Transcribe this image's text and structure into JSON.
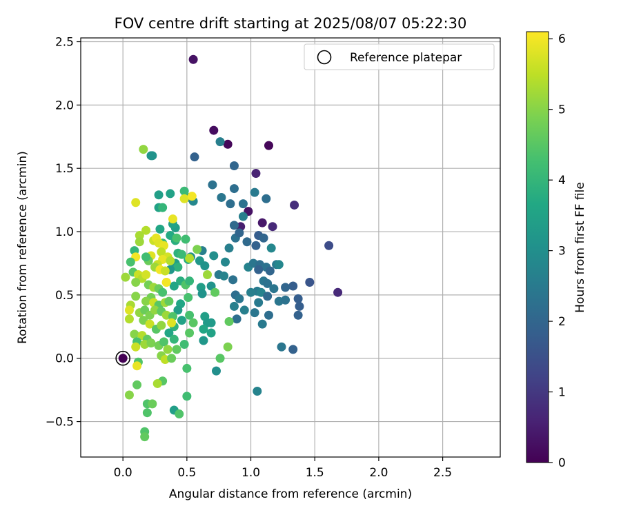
{
  "chart_data": {
    "type": "scatter",
    "title": "FOV centre drift starting at 2025/08/07 05:22:30",
    "xlabel": "Angular distance from reference (arcmin)",
    "ylabel": "Rotation from reference (arcmin)",
    "xlim": [
      -0.33,
      2.95
    ],
    "ylim": [
      -0.78,
      2.53
    ],
    "xticks": [
      "0.0",
      "0.5",
      "1.0",
      "1.5",
      "2.0",
      "2.5"
    ],
    "yticks": [
      "−0.5",
      "0.0",
      "0.5",
      "1.0",
      "1.5",
      "2.0",
      "2.5"
    ],
    "grid": true,
    "legend": {
      "label": "Reference platepar",
      "placement": "top-right"
    },
    "colorbar": {
      "label": "Hours from first FF file",
      "colormap": "viridis",
      "range": [
        0,
        6.1
      ],
      "ticks": [
        "0",
        "1",
        "2",
        "3",
        "4",
        "5",
        "6"
      ]
    },
    "reference_point": {
      "x": 0.0,
      "y": 0.0,
      "hours": 0.0
    },
    "points": [
      {
        "x": 0.55,
        "y": 2.36,
        "h": 0.3
      },
      {
        "x": 0.71,
        "y": 1.8,
        "h": 0.2
      },
      {
        "x": 0.82,
        "y": 1.69,
        "h": 0.1
      },
      {
        "x": 1.14,
        "y": 1.68,
        "h": 0.1
      },
      {
        "x": 1.04,
        "y": 1.46,
        "h": 0.6
      },
      {
        "x": 1.34,
        "y": 1.21,
        "h": 0.8
      },
      {
        "x": 0.98,
        "y": 1.16,
        "h": 0.3
      },
      {
        "x": 1.09,
        "y": 1.07,
        "h": 0.4
      },
      {
        "x": 1.17,
        "y": 1.04,
        "h": 0.7
      },
      {
        "x": 0.92,
        "y": 1.04,
        "h": 0.5
      },
      {
        "x": 1.68,
        "y": 0.52,
        "h": 0.7
      },
      {
        "x": 1.61,
        "y": 0.89,
        "h": 1.4
      },
      {
        "x": 1.46,
        "y": 0.6,
        "h": 1.6
      },
      {
        "x": 1.37,
        "y": 0.47,
        "h": 1.8
      },
      {
        "x": 1.33,
        "y": 0.07,
        "h": 1.9
      },
      {
        "x": 1.38,
        "y": 0.41,
        "h": 1.8
      },
      {
        "x": 1.37,
        "y": 0.34,
        "h": 1.9
      },
      {
        "x": 1.33,
        "y": 0.57,
        "h": 1.8
      },
      {
        "x": 1.27,
        "y": 0.56,
        "h": 2.0
      },
      {
        "x": 1.24,
        "y": 0.09,
        "h": 2.4
      },
      {
        "x": 0.56,
        "y": 1.59,
        "h": 1.9
      },
      {
        "x": 0.87,
        "y": 1.52,
        "h": 2.0
      },
      {
        "x": 0.76,
        "y": 1.71,
        "h": 2.6
      },
      {
        "x": 0.7,
        "y": 1.37,
        "h": 2.3
      },
      {
        "x": 0.87,
        "y": 1.34,
        "h": 2.2
      },
      {
        "x": 0.77,
        "y": 1.27,
        "h": 2.4
      },
      {
        "x": 0.84,
        "y": 1.22,
        "h": 2.2
      },
      {
        "x": 0.94,
        "y": 1.22,
        "h": 2.3
      },
      {
        "x": 1.03,
        "y": 1.31,
        "h": 2.5
      },
      {
        "x": 1.12,
        "y": 1.26,
        "h": 2.2
      },
      {
        "x": 0.94,
        "y": 1.12,
        "h": 2.6
      },
      {
        "x": 0.87,
        "y": 1.05,
        "h": 2.1
      },
      {
        "x": 0.83,
        "y": 0.87,
        "h": 2.6
      },
      {
        "x": 0.88,
        "y": 0.95,
        "h": 2.3
      },
      {
        "x": 0.91,
        "y": 0.99,
        "h": 2.0
      },
      {
        "x": 0.97,
        "y": 0.92,
        "h": 2.1
      },
      {
        "x": 1.04,
        "y": 0.89,
        "h": 1.9
      },
      {
        "x": 1.06,
        "y": 0.97,
        "h": 1.8
      },
      {
        "x": 1.1,
        "y": 0.95,
        "h": 2.0
      },
      {
        "x": 1.16,
        "y": 0.87,
        "h": 2.8
      },
      {
        "x": 0.98,
        "y": 0.72,
        "h": 2.7
      },
      {
        "x": 1.02,
        "y": 0.75,
        "h": 2.4
      },
      {
        "x": 1.07,
        "y": 0.74,
        "h": 2.2
      },
      {
        "x": 1.12,
        "y": 0.72,
        "h": 2.3
      },
      {
        "x": 1.15,
        "y": 0.69,
        "h": 2.0
      },
      {
        "x": 1.06,
        "y": 0.7,
        "h": 1.9
      },
      {
        "x": 1.2,
        "y": 0.74,
        "h": 2.5
      },
      {
        "x": 1.22,
        "y": 0.74,
        "h": 2.8
      },
      {
        "x": 1.1,
        "y": 0.61,
        "h": 2.4
      },
      {
        "x": 1.13,
        "y": 0.59,
        "h": 2.3
      },
      {
        "x": 1.18,
        "y": 0.55,
        "h": 2.4
      },
      {
        "x": 1.05,
        "y": 0.53,
        "h": 2.5
      },
      {
        "x": 1.0,
        "y": 0.52,
        "h": 2.6
      },
      {
        "x": 1.08,
        "y": 0.52,
        "h": 2.7
      },
      {
        "x": 1.13,
        "y": 0.49,
        "h": 2.1
      },
      {
        "x": 1.22,
        "y": 0.45,
        "h": 2.4
      },
      {
        "x": 1.27,
        "y": 0.46,
        "h": 2.3
      },
      {
        "x": 1.06,
        "y": 0.44,
        "h": 2.5
      },
      {
        "x": 0.95,
        "y": 0.38,
        "h": 2.6
      },
      {
        "x": 1.03,
        "y": 0.36,
        "h": 2.4
      },
      {
        "x": 1.14,
        "y": 0.34,
        "h": 2.2
      },
      {
        "x": 1.09,
        "y": 0.27,
        "h": 2.5
      },
      {
        "x": 0.89,
        "y": 0.31,
        "h": 2.2
      },
      {
        "x": 0.88,
        "y": 0.5,
        "h": 2.2
      },
      {
        "x": 0.91,
        "y": 0.47,
        "h": 2.4
      },
      {
        "x": 0.87,
        "y": 0.41,
        "h": 2.6
      },
      {
        "x": 0.75,
        "y": 0.66,
        "h": 2.5
      },
      {
        "x": 0.79,
        "y": 0.65,
        "h": 2.7
      },
      {
        "x": 0.86,
        "y": 0.62,
        "h": 2.3
      },
      {
        "x": 0.8,
        "y": 0.76,
        "h": 2.8
      },
      {
        "x": 0.71,
        "y": 0.81,
        "h": 3.0
      },
      {
        "x": 0.62,
        "y": 0.85,
        "h": 2.6
      },
      {
        "x": 0.6,
        "y": 0.77,
        "h": 3.2
      },
      {
        "x": 0.53,
        "y": 0.8,
        "h": 3.0
      },
      {
        "x": 0.64,
        "y": 0.73,
        "h": 3.1
      },
      {
        "x": 0.69,
        "y": 0.57,
        "h": 3.1
      },
      {
        "x": 0.61,
        "y": 0.56,
        "h": 3.4
      },
      {
        "x": 0.62,
        "y": 0.51,
        "h": 3.1
      },
      {
        "x": 1.05,
        "y": -0.26,
        "h": 2.7
      },
      {
        "x": 0.73,
        "y": -0.1,
        "h": 3.0
      },
      {
        "x": 0.69,
        "y": 0.28,
        "h": 3.3
      },
      {
        "x": 0.64,
        "y": 0.33,
        "h": 3.4
      },
      {
        "x": 0.66,
        "y": 0.28,
        "h": 3.3
      },
      {
        "x": 0.63,
        "y": 0.23,
        "h": 3.6
      },
      {
        "x": 0.63,
        "y": 0.14,
        "h": 3.2
      },
      {
        "x": 0.69,
        "y": 0.2,
        "h": 3.5
      },
      {
        "x": 0.52,
        "y": 1.27,
        "h": 2.6
      },
      {
        "x": 0.55,
        "y": 1.24,
        "h": 2.8
      },
      {
        "x": 0.22,
        "y": 1.6,
        "h": 3.2
      },
      {
        "x": 0.28,
        "y": 1.29,
        "h": 3.4
      },
      {
        "x": 0.37,
        "y": 1.3,
        "h": 3.5
      },
      {
        "x": 0.28,
        "y": 1.19,
        "h": 3.5
      },
      {
        "x": 0.31,
        "y": 1.19,
        "h": 4.0
      },
      {
        "x": 0.41,
        "y": 1.03,
        "h": 3.4
      },
      {
        "x": 0.39,
        "y": 1.06,
        "h": 3.5
      },
      {
        "x": 0.29,
        "y": 1.02,
        "h": 3.6
      },
      {
        "x": 0.48,
        "y": 1.32,
        "h": 4.1
      },
      {
        "x": 0.37,
        "y": 0.97,
        "h": 3.7
      },
      {
        "x": 0.41,
        "y": 0.93,
        "h": 3.8
      },
      {
        "x": 0.31,
        "y": 0.91,
        "h": 4.1
      },
      {
        "x": 0.43,
        "y": 0.83,
        "h": 3.9
      },
      {
        "x": 0.49,
        "y": 0.94,
        "h": 4.2
      },
      {
        "x": 0.51,
        "y": 0.78,
        "h": 3.8
      },
      {
        "x": 0.41,
        "y": 0.75,
        "h": 3.4
      },
      {
        "x": 0.43,
        "y": 0.72,
        "h": 3.9
      },
      {
        "x": 0.37,
        "y": 0.7,
        "h": 3.2
      },
      {
        "x": 0.45,
        "y": 0.61,
        "h": 3.8
      },
      {
        "x": 0.4,
        "y": 0.57,
        "h": 3.6
      },
      {
        "x": 0.49,
        "y": 0.58,
        "h": 4.4
      },
      {
        "x": 0.52,
        "y": 0.61,
        "h": 4.0
      },
      {
        "x": 0.51,
        "y": 0.48,
        "h": 4.3
      },
      {
        "x": 0.45,
        "y": 0.43,
        "h": 3.6
      },
      {
        "x": 0.43,
        "y": 0.38,
        "h": 3.4
      },
      {
        "x": 0.46,
        "y": 0.3,
        "h": 3.5
      },
      {
        "x": 0.4,
        "y": 0.25,
        "h": 3.9
      },
      {
        "x": 0.36,
        "y": 0.2,
        "h": 3.6
      },
      {
        "x": 0.4,
        "y": 0.15,
        "h": 4.0
      },
      {
        "x": 0.48,
        "y": 0.11,
        "h": 4.2
      },
      {
        "x": 0.52,
        "y": 0.34,
        "h": 4.3
      },
      {
        "x": 0.55,
        "y": 0.28,
        "h": 4.5
      },
      {
        "x": 0.52,
        "y": 0.2,
        "h": 4.5
      },
      {
        "x": 0.76,
        "y": 0.0,
        "h": 4.5
      },
      {
        "x": 0.82,
        "y": 0.09,
        "h": 4.9
      },
      {
        "x": 0.72,
        "y": 0.52,
        "h": 4.6
      },
      {
        "x": 0.83,
        "y": 0.29,
        "h": 4.6
      },
      {
        "x": 0.66,
        "y": 0.66,
        "h": 5.2
      },
      {
        "x": 0.58,
        "y": 0.86,
        "h": 4.9
      },
      {
        "x": 0.52,
        "y": 0.79,
        "h": 5.4
      },
      {
        "x": 0.23,
        "y": 1.6,
        "h": 3.1
      },
      {
        "x": 0.46,
        "y": 0.82,
        "h": 4.1
      },
      {
        "x": 0.42,
        "y": 0.95,
        "h": 4.3
      },
      {
        "x": 0.48,
        "y": 1.26,
        "h": 5.8
      },
      {
        "x": 0.54,
        "y": 1.28,
        "h": 6.0
      },
      {
        "x": 0.16,
        "y": 1.65,
        "h": 5.1
      },
      {
        "x": 0.1,
        "y": 1.23,
        "h": 5.8
      },
      {
        "x": 0.39,
        "y": 1.1,
        "h": 5.9
      },
      {
        "x": 0.18,
        "y": 1.01,
        "h": 5.4
      },
      {
        "x": 0.13,
        "y": 0.97,
        "h": 5.3
      },
      {
        "x": 0.13,
        "y": 0.92,
        "h": 5.2
      },
      {
        "x": 0.24,
        "y": 0.93,
        "h": 5.6
      },
      {
        "x": 0.26,
        "y": 0.95,
        "h": 5.9
      },
      {
        "x": 0.28,
        "y": 0.91,
        "h": 5.8
      },
      {
        "x": 0.32,
        "y": 0.89,
        "h": 5.9
      },
      {
        "x": 0.3,
        "y": 0.84,
        "h": 5.5
      },
      {
        "x": 0.35,
        "y": 0.8,
        "h": 5.7
      },
      {
        "x": 0.31,
        "y": 0.78,
        "h": 5.9
      },
      {
        "x": 0.37,
        "y": 0.77,
        "h": 5.4
      },
      {
        "x": 0.27,
        "y": 0.74,
        "h": 5.6
      },
      {
        "x": 0.25,
        "y": 0.72,
        "h": 5.2
      },
      {
        "x": 0.29,
        "y": 0.7,
        "h": 6.0
      },
      {
        "x": 0.33,
        "y": 0.69,
        "h": 5.6
      },
      {
        "x": 0.22,
        "y": 0.81,
        "h": 5.8
      },
      {
        "x": 0.2,
        "y": 0.77,
        "h": 4.7
      },
      {
        "x": 0.18,
        "y": 0.8,
        "h": 4.2
      },
      {
        "x": 0.09,
        "y": 0.85,
        "h": 4.0
      },
      {
        "x": 0.1,
        "y": 0.8,
        "h": 6.0
      },
      {
        "x": 0.06,
        "y": 0.76,
        "h": 4.3
      },
      {
        "x": 0.08,
        "y": 0.68,
        "h": 4.5
      },
      {
        "x": 0.12,
        "y": 0.66,
        "h": 5.6
      },
      {
        "x": 0.15,
        "y": 0.63,
        "h": 5.4
      },
      {
        "x": 0.18,
        "y": 0.66,
        "h": 5.7
      },
      {
        "x": 0.1,
        "y": 0.6,
        "h": 5.0
      },
      {
        "x": 0.02,
        "y": 0.64,
        "h": 5.2
      },
      {
        "x": 0.2,
        "y": 0.58,
        "h": 4.8
      },
      {
        "x": 0.24,
        "y": 0.56,
        "h": 5.2
      },
      {
        "x": 0.28,
        "y": 0.55,
        "h": 4.7
      },
      {
        "x": 0.34,
        "y": 0.6,
        "h": 5.9
      },
      {
        "x": 0.31,
        "y": 0.52,
        "h": 4.3
      },
      {
        "x": 0.22,
        "y": 0.48,
        "h": 4.8
      },
      {
        "x": 0.18,
        "y": 0.45,
        "h": 5.0
      },
      {
        "x": 0.24,
        "y": 0.44,
        "h": 5.6
      },
      {
        "x": 0.28,
        "y": 0.42,
        "h": 4.5
      },
      {
        "x": 0.33,
        "y": 0.44,
        "h": 5.2
      },
      {
        "x": 0.36,
        "y": 0.45,
        "h": 4.6
      },
      {
        "x": 0.1,
        "y": 0.49,
        "h": 5.0
      },
      {
        "x": 0.06,
        "y": 0.42,
        "h": 5.3
      },
      {
        "x": 0.05,
        "y": 0.38,
        "h": 5.8
      },
      {
        "x": 0.13,
        "y": 0.36,
        "h": 5.1
      },
      {
        "x": 0.17,
        "y": 0.38,
        "h": 4.7
      },
      {
        "x": 0.21,
        "y": 0.34,
        "h": 4.9
      },
      {
        "x": 0.25,
        "y": 0.38,
        "h": 5.1
      },
      {
        "x": 0.3,
        "y": 0.37,
        "h": 4.6
      },
      {
        "x": 0.34,
        "y": 0.34,
        "h": 5.2
      },
      {
        "x": 0.39,
        "y": 0.33,
        "h": 4.4
      },
      {
        "x": 0.05,
        "y": 0.31,
        "h": 5.4
      },
      {
        "x": 0.16,
        "y": 0.3,
        "h": 4.9
      },
      {
        "x": 0.21,
        "y": 0.27,
        "h": 5.6
      },
      {
        "x": 0.26,
        "y": 0.23,
        "h": 4.5
      },
      {
        "x": 0.3,
        "y": 0.26,
        "h": 5.1
      },
      {
        "x": 0.38,
        "y": 0.28,
        "h": 5.8
      },
      {
        "x": 0.09,
        "y": 0.19,
        "h": 5.0
      },
      {
        "x": 0.15,
        "y": 0.18,
        "h": 5.4
      },
      {
        "x": 0.19,
        "y": 0.15,
        "h": 4.6
      },
      {
        "x": 0.11,
        "y": 0.13,
        "h": 4.3
      },
      {
        "x": 0.17,
        "y": 0.11,
        "h": 5.2
      },
      {
        "x": 0.1,
        "y": 0.09,
        "h": 5.6
      },
      {
        "x": 0.22,
        "y": 0.12,
        "h": 4.9
      },
      {
        "x": 0.28,
        "y": 0.1,
        "h": 4.8
      },
      {
        "x": 0.32,
        "y": 0.13,
        "h": 4.4
      },
      {
        "x": 0.35,
        "y": 0.07,
        "h": 5.1
      },
      {
        "x": 0.42,
        "y": 0.07,
        "h": 4.6
      },
      {
        "x": 0.3,
        "y": 0.02,
        "h": 5.0
      },
      {
        "x": 0.33,
        "y": -0.01,
        "h": 5.5
      },
      {
        "x": 0.38,
        "y": 0.0,
        "h": 4.7
      },
      {
        "x": 0.12,
        "y": -0.03,
        "h": 4.4
      },
      {
        "x": 0.11,
        "y": -0.06,
        "h": 5.9
      },
      {
        "x": 0.5,
        "y": -0.08,
        "h": 4.3
      },
      {
        "x": 0.11,
        "y": -0.21,
        "h": 4.6
      },
      {
        "x": 0.31,
        "y": -0.18,
        "h": 4.5
      },
      {
        "x": 0.27,
        "y": -0.2,
        "h": 5.3
      },
      {
        "x": 0.5,
        "y": -0.3,
        "h": 4.2
      },
      {
        "x": 0.05,
        "y": -0.29,
        "h": 5.0
      },
      {
        "x": 0.19,
        "y": -0.36,
        "h": 4.4
      },
      {
        "x": 0.23,
        "y": -0.36,
        "h": 4.7
      },
      {
        "x": 0.19,
        "y": -0.43,
        "h": 4.4
      },
      {
        "x": 0.4,
        "y": -0.41,
        "h": 3.4
      },
      {
        "x": 0.44,
        "y": -0.44,
        "h": 4.4
      },
      {
        "x": 0.17,
        "y": -0.58,
        "h": 4.4
      },
      {
        "x": 0.17,
        "y": -0.62,
        "h": 4.6
      },
      {
        "x": 0.34,
        "y": 0.6,
        "h": 6.0
      }
    ]
  }
}
